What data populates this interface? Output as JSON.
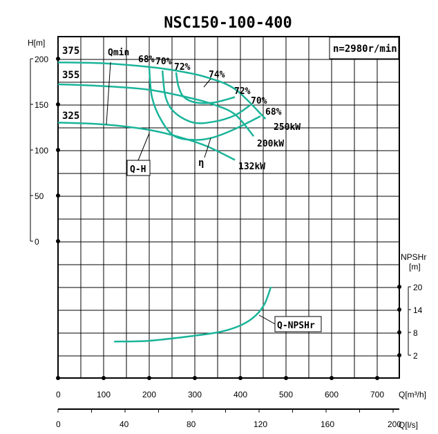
{
  "chart_data": {
    "type": "line",
    "title": "NSC150-100-400",
    "speed_label": "n=2980r/min",
    "xlabel": "Q[m³/h]",
    "xlabel2": "Q[l/s]",
    "ylabel": "H[m]",
    "ylabel2_top": "NPSHr",
    "ylabel2_unit": "[m]",
    "xlim": [
      0,
      750
    ],
    "ylim": [
      0,
      225
    ],
    "x2lim": [
      0,
      200
    ],
    "grid": true,
    "x_ticks": [
      0,
      100,
      200,
      300,
      400,
      500,
      600,
      700
    ],
    "x2_ticks": [
      0,
      40,
      80,
      120,
      160,
      200
    ],
    "y_ticks": [
      0,
      50,
      100,
      150,
      200
    ],
    "npsh_ticks": [
      2,
      8,
      14,
      20
    ],
    "curve_color": "#1ab49a",
    "impeller_labels": [
      "375",
      "355",
      "325"
    ],
    "qh_series": [
      {
        "name": "375",
        "power": "250kW",
        "points": [
          [
            0,
            196
          ],
          [
            100,
            195
          ],
          [
            200,
            191
          ],
          [
            270,
            186
          ],
          [
            330,
            179
          ],
          [
            390,
            166
          ],
          [
            455,
            134
          ]
        ]
      },
      {
        "name": "355",
        "power": "200kW",
        "points": [
          [
            0,
            172
          ],
          [
            100,
            170
          ],
          [
            200,
            166
          ],
          [
            290,
            157
          ],
          [
            340,
            150
          ],
          [
            388,
            139
          ],
          [
            429,
            115
          ]
        ]
      },
      {
        "name": "325",
        "power": "132kW",
        "points": [
          [
            0,
            130
          ],
          [
            100,
            128
          ],
          [
            200,
            122
          ],
          [
            267,
            114
          ],
          [
            327,
            104
          ],
          [
            388,
            89
          ]
        ]
      }
    ],
    "efficiency_series": [
      {
        "name": "68%",
        "points": [
          [
            200,
            190
          ],
          [
            206,
            158
          ],
          [
            226,
            133
          ],
          [
            256,
            115
          ],
          [
            302,
            111
          ],
          [
            342,
            114
          ],
          [
            388,
            123
          ],
          [
            444,
            137
          ]
        ]
      },
      {
        "name": "70%",
        "points": [
          [
            229,
            187
          ],
          [
            236,
            158
          ],
          [
            256,
            141
          ],
          [
            297,
            130
          ],
          [
            342,
            131
          ],
          [
            388,
            138
          ],
          [
            421,
            149
          ]
        ]
      },
      {
        "name": "72%",
        "points": [
          [
            259,
            185
          ],
          [
            264,
            170
          ],
          [
            276,
            158
          ],
          [
            302,
            152
          ],
          [
            342,
            152
          ],
          [
            388,
            158
          ]
        ]
      }
    ],
    "efficiency_labels": [
      "68%",
      "70%",
      "72%",
      "74%",
      "72%",
      "70%",
      "68%"
    ],
    "npsh_series": {
      "name": "Q-NPSHr",
      "points": [
        [
          123,
          5.6
        ],
        [
          200,
          5.8
        ],
        [
          297,
          7.1
        ],
        [
          358,
          8.2
        ],
        [
          403,
          10
        ],
        [
          433,
          12.4
        ],
        [
          453,
          15.5
        ],
        [
          467,
          20
        ]
      ]
    },
    "annotations": {
      "qmin": "Qmin",
      "qh": "Q-H",
      "eta": "η",
      "npsh": "Q-NPSHr"
    }
  }
}
